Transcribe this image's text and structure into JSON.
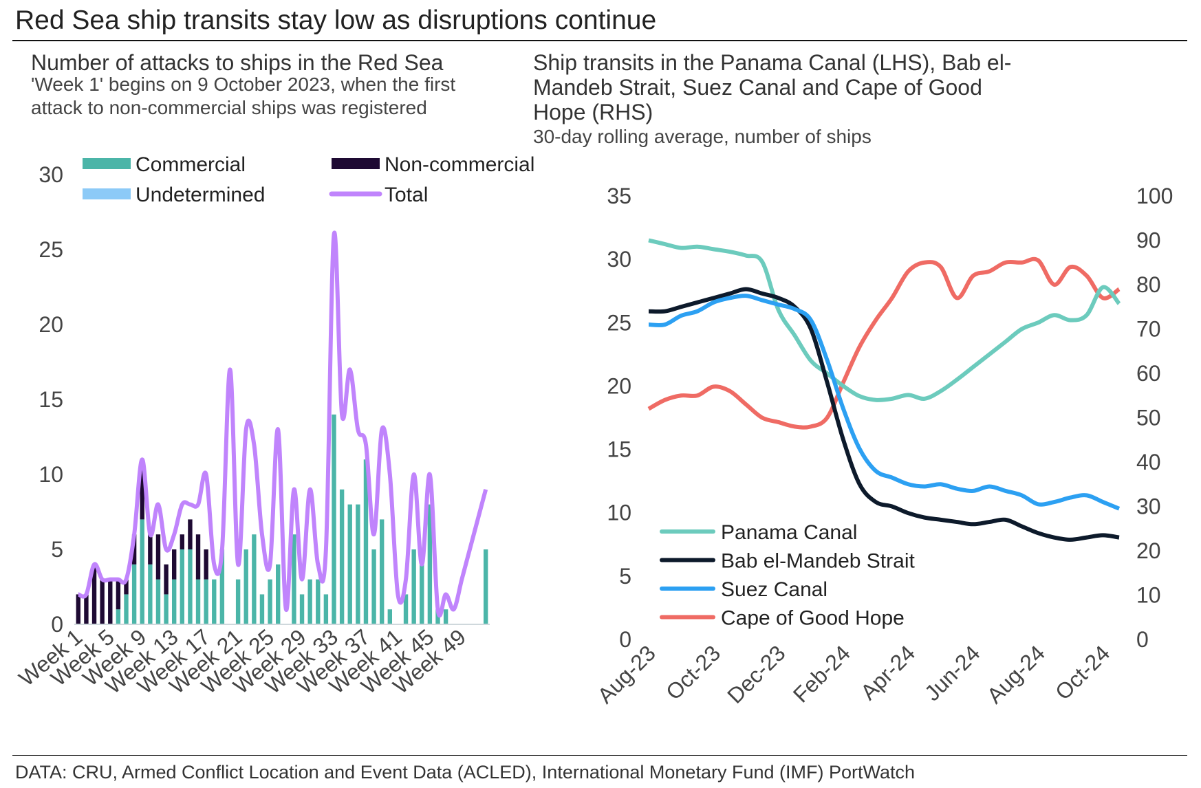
{
  "header": {
    "title": "Red Sea ship transits stay low as disruptions continue"
  },
  "footer": {
    "source": "DATA: CRU, Armed Conflict Location and Event Data (ACLED), International Monetary Fund (IMF) PortWatch"
  },
  "colors": {
    "commercial": "#4bb5a8",
    "non_commercial": "#1e0a33",
    "undetermined": "#8ccaf7",
    "total": "#c084fc",
    "panama": "#6ccbbd",
    "bab": "#0d1a2b",
    "suez": "#2ca0f2",
    "cape": "#ef6b64"
  },
  "chart_data": [
    {
      "type": "bar",
      "title": "Number of attacks to ships in the Red Sea",
      "subtitle_line1": "'Week 1' begins on 9 October 2023, when the first",
      "subtitle_line2": "attack to non-commercial ships was registered",
      "stacked": true,
      "ylim": [
        0,
        30
      ],
      "yticks": [
        "0",
        "5",
        "10",
        "15",
        "20",
        "25",
        "30"
      ],
      "x_tick_labels": [
        "Week 1",
        "Week 5",
        "Week 9",
        "Week 13",
        "Week 17",
        "Week 21",
        "Week 25",
        "Week 29",
        "Week 33",
        "Week 37",
        "Week 41",
        "Week 45",
        "Week 49"
      ],
      "x_tick_weeks": [
        1,
        5,
        9,
        13,
        17,
        21,
        25,
        29,
        33,
        37,
        41,
        45,
        49
      ],
      "weeks": [
        1,
        2,
        3,
        4,
        5,
        6,
        7,
        8,
        9,
        10,
        11,
        12,
        13,
        14,
        15,
        16,
        17,
        18,
        19,
        20,
        21,
        22,
        23,
        24,
        25,
        26,
        27,
        28,
        29,
        30,
        31,
        32,
        33,
        34,
        35,
        36,
        37,
        38,
        39,
        40,
        41,
        42,
        43,
        44,
        45,
        46,
        47,
        48,
        49,
        50,
        51,
        52
      ],
      "legend": {
        "commercial": "Commercial",
        "non_commercial": "Non-commercial",
        "undetermined": "Undetermined",
        "total": "Total"
      },
      "series": [
        {
          "name": "Commercial",
          "values": [
            0,
            0,
            0,
            0,
            0,
            1,
            2,
            4,
            7,
            4,
            3,
            2,
            3,
            5,
            5,
            3,
            3,
            3,
            5,
            0,
            3,
            5,
            6,
            2,
            3,
            4,
            0,
            6,
            2,
            3,
            3,
            2,
            14,
            9,
            8,
            8,
            11,
            5,
            7,
            1,
            0,
            2,
            5,
            4,
            8,
            1,
            1,
            0,
            0,
            0,
            0,
            5
          ]
        },
        {
          "name": "Non-commercial",
          "values": [
            2,
            2,
            4,
            3,
            3,
            2,
            1,
            2,
            4,
            2,
            3,
            2,
            2,
            1,
            2,
            3,
            2,
            0,
            0,
            0,
            0,
            0,
            0,
            0,
            0,
            0,
            0,
            0,
            0,
            0,
            0,
            0,
            0,
            0,
            0,
            0,
            0,
            0,
            0,
            0,
            0,
            0,
            0,
            0,
            0,
            0,
            0,
            0,
            0,
            0,
            0,
            0
          ]
        },
        {
          "name": "Undetermined",
          "values": [
            0,
            0,
            0,
            0,
            0,
            0,
            0,
            0,
            0,
            0,
            0,
            0,
            0,
            0,
            0,
            0,
            0,
            0,
            0,
            0,
            0,
            0,
            0,
            0,
            0,
            0,
            0,
            0,
            0,
            0,
            0,
            0,
            0,
            0,
            0,
            0,
            0,
            0,
            0,
            0,
            0,
            0,
            0,
            0,
            0,
            0,
            0,
            0,
            0,
            0,
            0,
            0
          ]
        },
        {
          "name": "Total",
          "values": [
            2,
            2,
            4,
            3,
            3,
            3,
            3,
            6,
            11,
            6,
            8,
            5,
            6,
            8,
            8,
            8,
            10,
            4,
            5,
            17,
            4,
            13,
            12,
            6,
            4,
            13,
            1,
            9,
            3,
            9,
            4,
            5,
            26,
            14,
            17,
            13,
            12,
            6,
            13,
            10,
            2,
            3,
            10,
            4,
            10,
            1,
            2,
            1,
            3,
            5,
            7,
            9
          ]
        }
      ]
    },
    {
      "type": "line",
      "title_line1": "Ship transits in the Panama Canal (LHS), Bab el-",
      "title_line2": "Mandeb Strait, Suez Canal and Cape of Good",
      "title_line3": "Hope (RHS)",
      "subtitle": "30-day rolling average, number of ships",
      "x_tick_labels": [
        "Aug-23",
        "Oct-23",
        "Dec-23",
        "Feb-24",
        "Apr-24",
        "Jun-24",
        "Aug-24",
        "Oct-24"
      ],
      "x_months": [
        0,
        2,
        4,
        6,
        8,
        10,
        12,
        14
      ],
      "y_left": {
        "ylim": [
          0,
          35
        ],
        "ticks": [
          "0",
          "5",
          "10",
          "15",
          "20",
          "25",
          "30",
          "35"
        ]
      },
      "y_right": {
        "ylim": [
          0,
          100
        ],
        "ticks": [
          "0",
          "10",
          "20",
          "30",
          "40",
          "50",
          "60",
          "70",
          "80",
          "90",
          "100"
        ]
      },
      "series": [
        {
          "name": "Panama Canal",
          "axis": "left",
          "x": [
            0,
            0.5,
            1,
            1.5,
            2,
            2.5,
            3,
            3.5,
            4,
            4.5,
            5,
            5.5,
            6,
            6.5,
            7,
            7.5,
            8,
            8.5,
            9,
            9.5,
            10,
            10.5,
            11,
            11.5,
            12,
            12.5,
            13,
            13.5,
            14,
            14.5
          ],
          "values": [
            31.5,
            31.2,
            30.9,
            31.0,
            30.8,
            30.6,
            30.3,
            29.8,
            26.0,
            24.0,
            22.0,
            21.0,
            20.0,
            19.2,
            18.9,
            19.0,
            19.3,
            19.0,
            19.6,
            20.5,
            21.5,
            22.5,
            23.5,
            24.5,
            25.0,
            25.6,
            25.2,
            25.6,
            27.8,
            26.5
          ]
        },
        {
          "name": "Bab el-Mandeb Strait",
          "axis": "right",
          "x": [
            0,
            0.5,
            1,
            1.5,
            2,
            2.5,
            3,
            3.5,
            4,
            4.5,
            5,
            5.5,
            6,
            6.5,
            7,
            7.5,
            8,
            8.5,
            9,
            9.5,
            10,
            10.5,
            11,
            11.5,
            12,
            12.5,
            13,
            13.5,
            14,
            14.5
          ],
          "values": [
            74,
            74,
            75,
            76,
            77,
            78,
            79,
            78,
            77,
            75,
            70,
            58,
            45,
            35,
            31,
            30,
            28.5,
            27.5,
            27,
            26.5,
            26,
            26.5,
            27,
            25.5,
            24,
            23,
            22.5,
            23,
            23.5,
            23
          ]
        },
        {
          "name": "Suez Canal",
          "axis": "right",
          "x": [
            0,
            0.5,
            1,
            1.5,
            2,
            2.5,
            3,
            3.5,
            4,
            4.5,
            5,
            5.5,
            6,
            6.5,
            7,
            7.5,
            8,
            8.5,
            9,
            9.5,
            10,
            10.5,
            11,
            11.5,
            12,
            12.5,
            13,
            13.5,
            14,
            14.5
          ],
          "values": [
            71,
            71,
            73,
            74,
            76,
            77,
            77.5,
            76.5,
            75.5,
            74.5,
            72,
            63,
            52,
            43,
            38,
            36.5,
            35,
            34.5,
            35,
            34,
            33.5,
            34.5,
            33.5,
            32.5,
            30.5,
            31,
            32,
            32.5,
            31,
            29.5
          ]
        },
        {
          "name": "Cape of Good Hope",
          "axis": "right",
          "x": [
            0,
            0.5,
            1,
            1.5,
            2,
            2.5,
            3,
            3.5,
            4,
            4.5,
            5,
            5.5,
            6,
            6.5,
            7,
            7.5,
            8,
            8.5,
            9,
            9.5,
            10,
            10.5,
            11,
            11.5,
            12,
            12.5,
            13,
            13.5,
            14,
            14.5
          ],
          "values": [
            52,
            54,
            55,
            55,
            57,
            56,
            53,
            50,
            49,
            48,
            48,
            50,
            58,
            66,
            72,
            77,
            83,
            85,
            84,
            77,
            82,
            83,
            85,
            85,
            85.5,
            80,
            84,
            82,
            77,
            79
          ]
        }
      ]
    }
  ]
}
